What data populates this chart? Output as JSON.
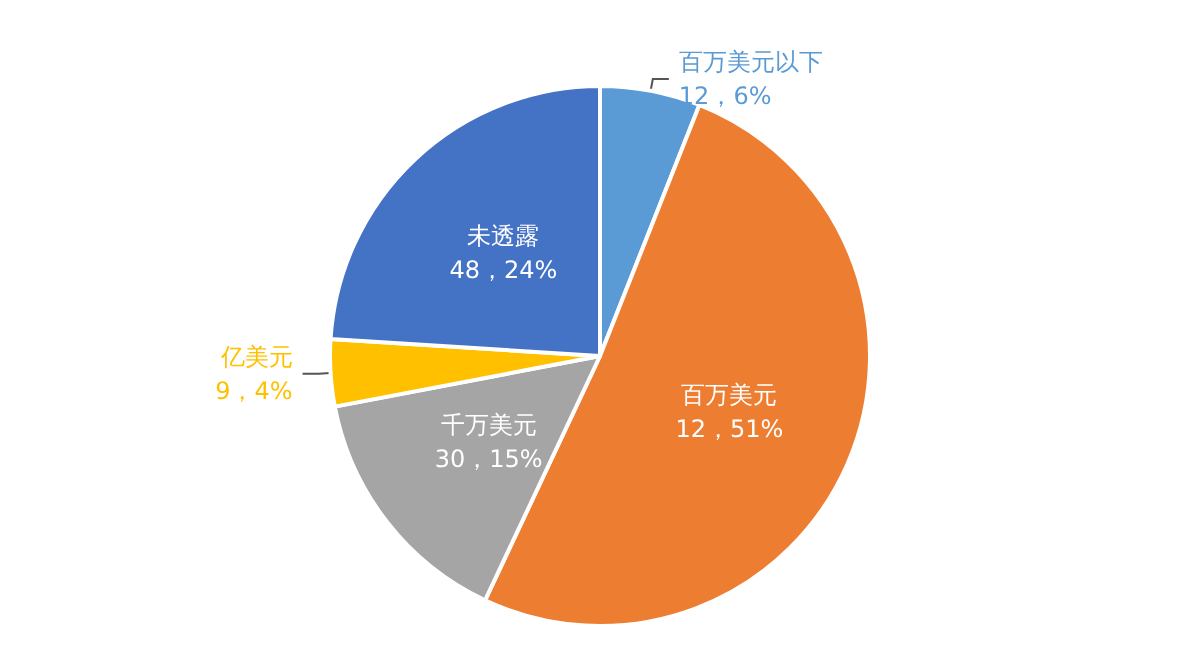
{
  "chart_data": {
    "type": "pie",
    "categories": [
      "百万美元以下",
      "百万美元",
      "千万美元",
      "亿美元",
      "未透露"
    ],
    "values": [
      6,
      51,
      15,
      4,
      24
    ],
    "value_labels": [
      "12，6%",
      "12，51%",
      "30，15%",
      "9，4%",
      "48，24%"
    ],
    "colors": [
      "#5b9bd5",
      "#ed7d31",
      "#a5a5a5",
      "#ffc000",
      "#4472c4"
    ],
    "legend": false
  }
}
